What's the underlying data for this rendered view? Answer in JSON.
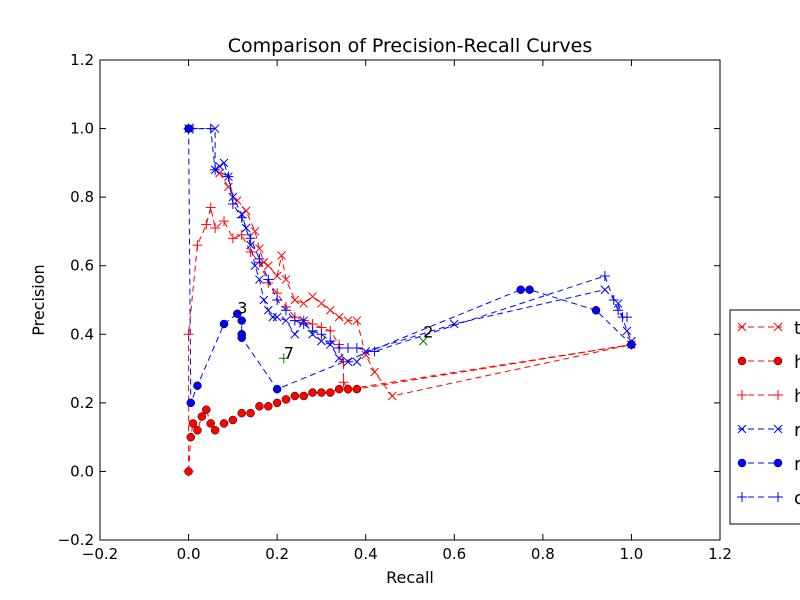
{
  "chart_data": {
    "type": "line",
    "title": "Comparison of Precision-Recall Curves",
    "xlabel": "Recall",
    "ylabel": "Precision",
    "xlim": [
      -0.2,
      1.2
    ],
    "ylim": [
      -0.2,
      1.2
    ],
    "xticks": [
      -0.2,
      0.0,
      0.2,
      0.4,
      0.6,
      0.8,
      1.0,
      1.2
    ],
    "xtick_labels": [
      "−0.2",
      "0.0",
      "0.2",
      "0.4",
      "0.6",
      "0.8",
      "1.0",
      "1.2"
    ],
    "yticks": [
      -0.2,
      0.0,
      0.2,
      0.4,
      0.6,
      0.8,
      1.0,
      1.2
    ],
    "ytick_labels": [
      "−0.2",
      "0.0",
      "0.2",
      "0.4",
      "0.6",
      "0.8",
      "1.0",
      "1.2"
    ],
    "grid": false,
    "legend_position": "right, outside plot (clipped)",
    "series": [
      {
        "name": "t",
        "color": "#ff0000",
        "marker": "x",
        "x": [
          0.07,
          0.09,
          0.11,
          0.13,
          0.15,
          0.16,
          0.17,
          0.18,
          0.2,
          0.21,
          0.22,
          0.24,
          0.26,
          0.28,
          0.3,
          0.32,
          0.34,
          0.36,
          0.38,
          0.4,
          0.42,
          0.46,
          1.0
        ],
        "y": [
          0.87,
          0.83,
          0.79,
          0.76,
          0.7,
          0.65,
          0.61,
          0.6,
          0.57,
          0.63,
          0.56,
          0.5,
          0.49,
          0.51,
          0.49,
          0.47,
          0.45,
          0.44,
          0.44,
          0.34,
          0.29,
          0.22,
          0.37
        ]
      },
      {
        "name": "h",
        "color": "#ff0000",
        "marker": "o",
        "x": [
          0.0,
          0.005,
          0.01,
          0.02,
          0.03,
          0.04,
          0.05,
          0.06,
          0.08,
          0.1,
          0.12,
          0.14,
          0.16,
          0.18,
          0.2,
          0.22,
          0.24,
          0.26,
          0.28,
          0.3,
          0.32,
          0.34,
          0.36,
          0.38,
          1.0
        ],
        "y": [
          0.0,
          0.1,
          0.14,
          0.12,
          0.16,
          0.18,
          0.14,
          0.12,
          0.14,
          0.15,
          0.17,
          0.17,
          0.19,
          0.19,
          0.2,
          0.21,
          0.22,
          0.22,
          0.23,
          0.23,
          0.23,
          0.24,
          0.24,
          0.24,
          0.37
        ]
      },
      {
        "name": "h",
        "color": "#ff0000",
        "marker": "+",
        "x": [
          0.0,
          0.0,
          0.02,
          0.04,
          0.05,
          0.06,
          0.08,
          0.1,
          0.12,
          0.14,
          0.16,
          0.18,
          0.2,
          0.22,
          0.24,
          0.26,
          0.28,
          0.3,
          0.32,
          0.34,
          0.35,
          0.35,
          0.36,
          1.0
        ],
        "y": [
          0.0,
          0.4,
          0.66,
          0.72,
          0.77,
          0.71,
          0.73,
          0.68,
          0.69,
          0.64,
          0.61,
          0.55,
          0.52,
          0.48,
          0.45,
          0.44,
          0.43,
          0.42,
          0.41,
          0.37,
          0.32,
          0.26,
          0.24,
          0.37
        ]
      },
      {
        "name": "r",
        "color": "#0000ff",
        "marker": "x",
        "x": [
          0.0,
          0.06,
          0.06,
          0.07,
          0.08,
          0.09,
          0.1,
          0.12,
          0.13,
          0.14,
          0.15,
          0.16,
          0.17,
          0.18,
          0.19,
          0.2,
          0.22,
          0.24,
          0.26,
          0.28,
          0.3,
          0.32,
          0.34,
          0.36,
          0.38,
          0.4,
          0.6,
          0.94,
          0.97,
          0.99,
          1.0
        ],
        "y": [
          1.0,
          1.0,
          0.88,
          0.89,
          0.9,
          0.86,
          0.8,
          0.75,
          0.71,
          0.66,
          0.6,
          0.56,
          0.5,
          0.47,
          0.45,
          0.45,
          0.44,
          0.4,
          0.44,
          0.4,
          0.38,
          0.37,
          0.33,
          0.32,
          0.32,
          0.35,
          0.43,
          0.53,
          0.49,
          0.41,
          0.38
        ]
      },
      {
        "name": "r",
        "color": "#0000ff",
        "marker": "o",
        "x": [
          0.0,
          0.005,
          0.02,
          0.08,
          0.11,
          0.12,
          0.12,
          0.12,
          0.2,
          0.75,
          0.77,
          0.92,
          1.0
        ],
        "y": [
          1.0,
          0.2,
          0.25,
          0.43,
          0.46,
          0.44,
          0.4,
          0.39,
          0.24,
          0.53,
          0.53,
          0.47,
          0.37
        ]
      },
      {
        "name": "o",
        "color": "#0000ff",
        "marker": "+",
        "x": [
          0.0,
          0.01,
          0.05,
          0.06,
          0.09,
          0.1,
          0.12,
          0.14,
          0.16,
          0.18,
          0.2,
          0.22,
          0.24,
          0.26,
          0.28,
          0.3,
          0.32,
          0.34,
          0.36,
          0.38,
          0.42,
          0.94,
          0.96,
          0.97,
          0.98,
          0.99
        ],
        "y": [
          1.0,
          1.0,
          1.0,
          0.88,
          0.86,
          0.78,
          0.74,
          0.68,
          0.62,
          0.56,
          0.5,
          0.47,
          0.44,
          0.43,
          0.41,
          0.4,
          0.38,
          0.36,
          0.36,
          0.36,
          0.35,
          0.57,
          0.5,
          0.47,
          0.45,
          0.45
        ]
      }
    ],
    "extra_points": [
      {
        "x": 0.53,
        "y": 0.38,
        "color": "#008000",
        "marker": "x"
      },
      {
        "x": 0.215,
        "y": 0.33,
        "color": "#008000",
        "marker": "+"
      }
    ],
    "annotations": [
      {
        "text": "3",
        "x": 0.11,
        "y": 0.46
      },
      {
        "text": "2",
        "x": 0.53,
        "y": 0.39
      },
      {
        "text": "7",
        "x": 0.215,
        "y": 0.33
      }
    ]
  }
}
